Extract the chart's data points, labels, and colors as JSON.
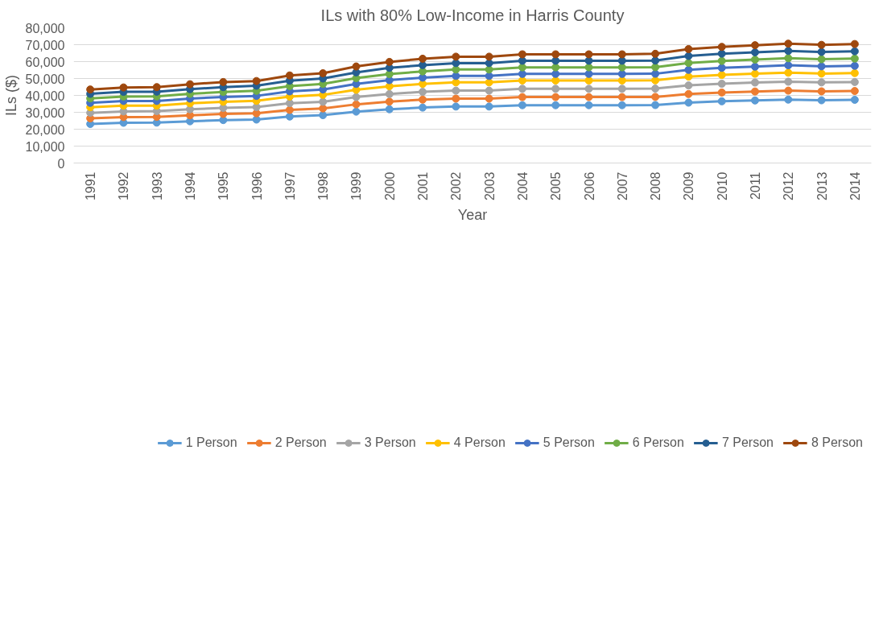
{
  "chart_data": {
    "type": "line",
    "title": "ILs with 80% Low-Income in Harris County",
    "xlabel": "Year",
    "ylabel": "ILs ($)",
    "categories": [
      "1991",
      "1992",
      "1993",
      "1994",
      "1995",
      "1996",
      "1997",
      "1998",
      "1999",
      "2000",
      "2001",
      "2002",
      "2003",
      "2004",
      "2005",
      "2006",
      "2007",
      "2008",
      "2009",
      "2010",
      "2011",
      "2012",
      "2013",
      "2014"
    ],
    "ylim": [
      0,
      80000
    ],
    "yticks": [
      {
        "value": 0,
        "label": "0"
      },
      {
        "value": 10000,
        "label": "10,000"
      },
      {
        "value": 20000,
        "label": "20,000"
      },
      {
        "value": 30000,
        "label": "30,000"
      },
      {
        "value": 40000,
        "label": "40,000"
      },
      {
        "value": 50000,
        "label": "50,000"
      },
      {
        "value": 60000,
        "label": "60,000"
      },
      {
        "value": 70000,
        "label": "70,000"
      },
      {
        "value": 80000,
        "label": "80,000"
      }
    ],
    "grid": "y",
    "legend": "bottom",
    "marker": "circle",
    "line_style": "solid",
    "series": [
      {
        "name": "1 Person",
        "color": "#5b9bd5",
        "values": [
          23100,
          23800,
          23900,
          24700,
          25400,
          25700,
          27500,
          28300,
          30400,
          31800,
          32800,
          33400,
          33400,
          34200,
          34200,
          34200,
          34200,
          34300,
          35700,
          36500,
          37000,
          37500,
          37100,
          37400
        ]
      },
      {
        "name": "2 Person",
        "color": "#ed7d31",
        "values": [
          26400,
          27200,
          27300,
          28200,
          29000,
          29400,
          31400,
          32300,
          34700,
          36300,
          37500,
          38100,
          38100,
          39000,
          39000,
          39000,
          39000,
          39100,
          40800,
          41700,
          42300,
          42800,
          42400,
          42600
        ]
      },
      {
        "name": "3 Person",
        "color": "#a5a5a5",
        "values": [
          29700,
          30500,
          30700,
          31800,
          32600,
          33100,
          35400,
          36200,
          39000,
          40800,
          42100,
          42800,
          42800,
          43900,
          43900,
          43900,
          43900,
          44000,
          45900,
          46900,
          47600,
          48100,
          47700,
          47900
        ]
      },
      {
        "name": "4 Person",
        "color": "#ffc000",
        "values": [
          33000,
          33900,
          33900,
          35300,
          36200,
          36800,
          39300,
          40300,
          43300,
          45400,
          46800,
          47700,
          47700,
          48800,
          48800,
          48800,
          48800,
          48900,
          51100,
          52100,
          52800,
          53400,
          52900,
          53200
        ]
      },
      {
        "name": "5 Person",
        "color": "#4472c4",
        "values": [
          35600,
          36700,
          36700,
          38100,
          39100,
          39700,
          42400,
          43500,
          46800,
          49000,
          50500,
          51500,
          51500,
          52700,
          52700,
          52700,
          52700,
          52800,
          55100,
          56300,
          57000,
          57800,
          57200,
          57500
        ]
      },
      {
        "name": "6 Person",
        "color": "#70ad47",
        "values": [
          38200,
          39300,
          39400,
          40900,
          42000,
          42700,
          45500,
          46800,
          50200,
          52600,
          54200,
          55300,
          55300,
          56600,
          56600,
          56600,
          56600,
          56700,
          59200,
          60400,
          61200,
          62000,
          61400,
          61800
        ]
      },
      {
        "name": "7 Person",
        "color": "#255e91",
        "values": [
          40900,
          42100,
          42200,
          43700,
          44900,
          45700,
          48700,
          50000,
          53600,
          56300,
          57900,
          59100,
          59100,
          60500,
          60500,
          60500,
          60500,
          60600,
          63300,
          64700,
          65500,
          66300,
          65700,
          66100
        ]
      },
      {
        "name": "8 Person",
        "color": "#9e480e",
        "values": [
          43500,
          44700,
          44900,
          46600,
          47900,
          48500,
          51800,
          53100,
          57100,
          59800,
          61700,
          62900,
          62900,
          64300,
          64300,
          64300,
          64300,
          64600,
          67400,
          68700,
          69700,
          70600,
          69900,
          70400
        ]
      }
    ]
  }
}
